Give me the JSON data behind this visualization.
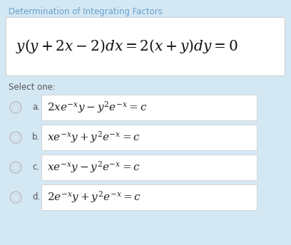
{
  "title": "Determination of Integrating Factors",
  "title_color": "#6aa0c8",
  "bg_color": "#d4e8f4",
  "white_box_color": "#ffffff",
  "select_text": "Select one:",
  "labels": [
    "a.",
    "b.",
    "c.",
    "d."
  ],
  "option_exprs_display": [
    "2xe^{-x}y - y^2e^{-x} = c",
    "xe^{-x}y + y^2e^{-x} = c",
    "xe^{-x}y - y^2e^{-x} = c",
    "2e^{-x}y + y^2e^{-x} = c"
  ],
  "option_box_color": "#ffffff",
  "option_text_color": "#222222",
  "label_color": "#555555",
  "circle_stroke": "#bbbbbb",
  "circle_fill": "#d4e8f4",
  "selected_option": -1,
  "fig_width": 4.08,
  "fig_height": 3.44,
  "dpi": 100
}
